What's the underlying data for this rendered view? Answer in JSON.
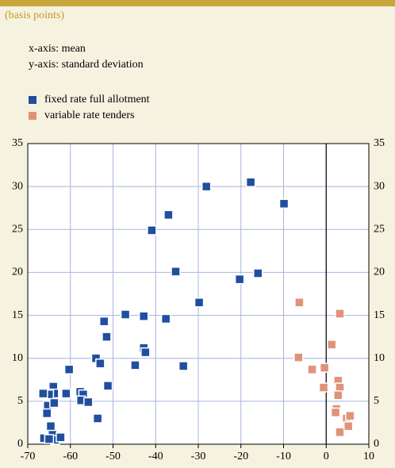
{
  "subtitle": "(basis points)",
  "notes": [
    "x-axis: mean",
    "y-axis: standard deviation"
  ],
  "chart_data": {
    "type": "scatter",
    "xlim": [
      -70,
      10
    ],
    "xticks": [
      -70,
      -60,
      -50,
      -40,
      -30,
      -20,
      -10,
      0,
      10
    ],
    "ylim": [
      0,
      35
    ],
    "yticks": [
      0,
      5,
      10,
      15,
      20,
      25,
      30,
      35
    ],
    "grid": true,
    "series": [
      {
        "name": "fixed rate full allotment",
        "color": "#1f4f9e",
        "x": [
          -28.1,
          -17.7,
          -9.9,
          -37.0,
          -40.9,
          -35.3,
          -20.3,
          -16.0,
          -29.8,
          -47.1,
          -42.8,
          -37.6,
          -52.1,
          -51.5,
          -42.8,
          -42.4,
          -54.0,
          -53.0,
          -44.8,
          -33.5,
          -51.2,
          -60.3,
          -57.7,
          -57.0,
          -57.5,
          -55.8,
          -61.0,
          -53.6,
          -64.0,
          -63.8,
          -65.0,
          -66.4,
          -65.3,
          -63.8,
          -65.5,
          -64.6,
          -64.2,
          -66.2,
          -63.6,
          -62.3,
          -65.0
        ],
        "values": [
          30.0,
          30.5,
          28.0,
          26.7,
          24.9,
          20.1,
          19.2,
          19.9,
          16.5,
          15.1,
          14.9,
          14.6,
          14.3,
          12.5,
          11.2,
          10.7,
          10.0,
          9.4,
          9.2,
          9.1,
          6.8,
          8.7,
          6.1,
          5.8,
          5.1,
          4.9,
          5.9,
          3.0,
          6.7,
          5.9,
          5.8,
          5.9,
          4.5,
          4.8,
          3.6,
          2.1,
          1.1,
          0.7,
          0.5,
          0.8,
          0.6
        ]
      },
      {
        "name": "variable rate tenders",
        "color": "#e0927a",
        "x": [
          -6.3,
          3.2,
          1.3,
          -6.5,
          -3.3,
          -0.4,
          -0.6,
          2.8,
          3.2,
          2.8,
          2.4,
          2.2,
          3.2,
          4.8,
          5.6,
          5.2
        ],
        "values": [
          16.5,
          15.2,
          11.6,
          10.1,
          8.7,
          8.9,
          6.6,
          7.4,
          6.6,
          5.7,
          4.1,
          3.7,
          1.4,
          3.0,
          3.3,
          2.1
        ]
      }
    ]
  }
}
